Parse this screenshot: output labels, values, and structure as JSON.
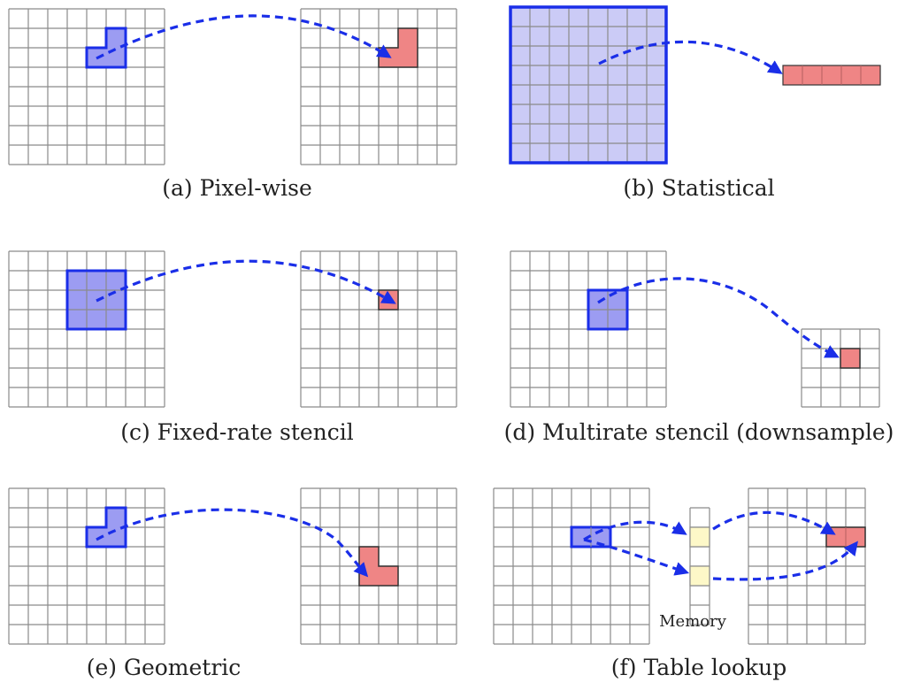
{
  "colors": {
    "grid_line": "#8a8a8a",
    "input_fill": "#9c9cf2",
    "input_stroke": "#1a2ee8",
    "stat_fill": "#cbcbf6",
    "output_fill": "#ef8585",
    "output_stroke": "#333333",
    "memory_fill": "#fdf8c8",
    "arrow": "#1a2ee8"
  },
  "panels": [
    {
      "id": "a",
      "caption": "(a) Pixel-wise"
    },
    {
      "id": "b",
      "caption": "(b) Statistical"
    },
    {
      "id": "c",
      "caption": "(c) Fixed-rate stencil"
    },
    {
      "id": "d",
      "caption": "(d) Multirate stencil (downsample)"
    },
    {
      "id": "e",
      "caption": "(e) Geometric"
    },
    {
      "id": "f",
      "caption": "(f) Table lookup"
    }
  ],
  "memory_label": "Memory"
}
